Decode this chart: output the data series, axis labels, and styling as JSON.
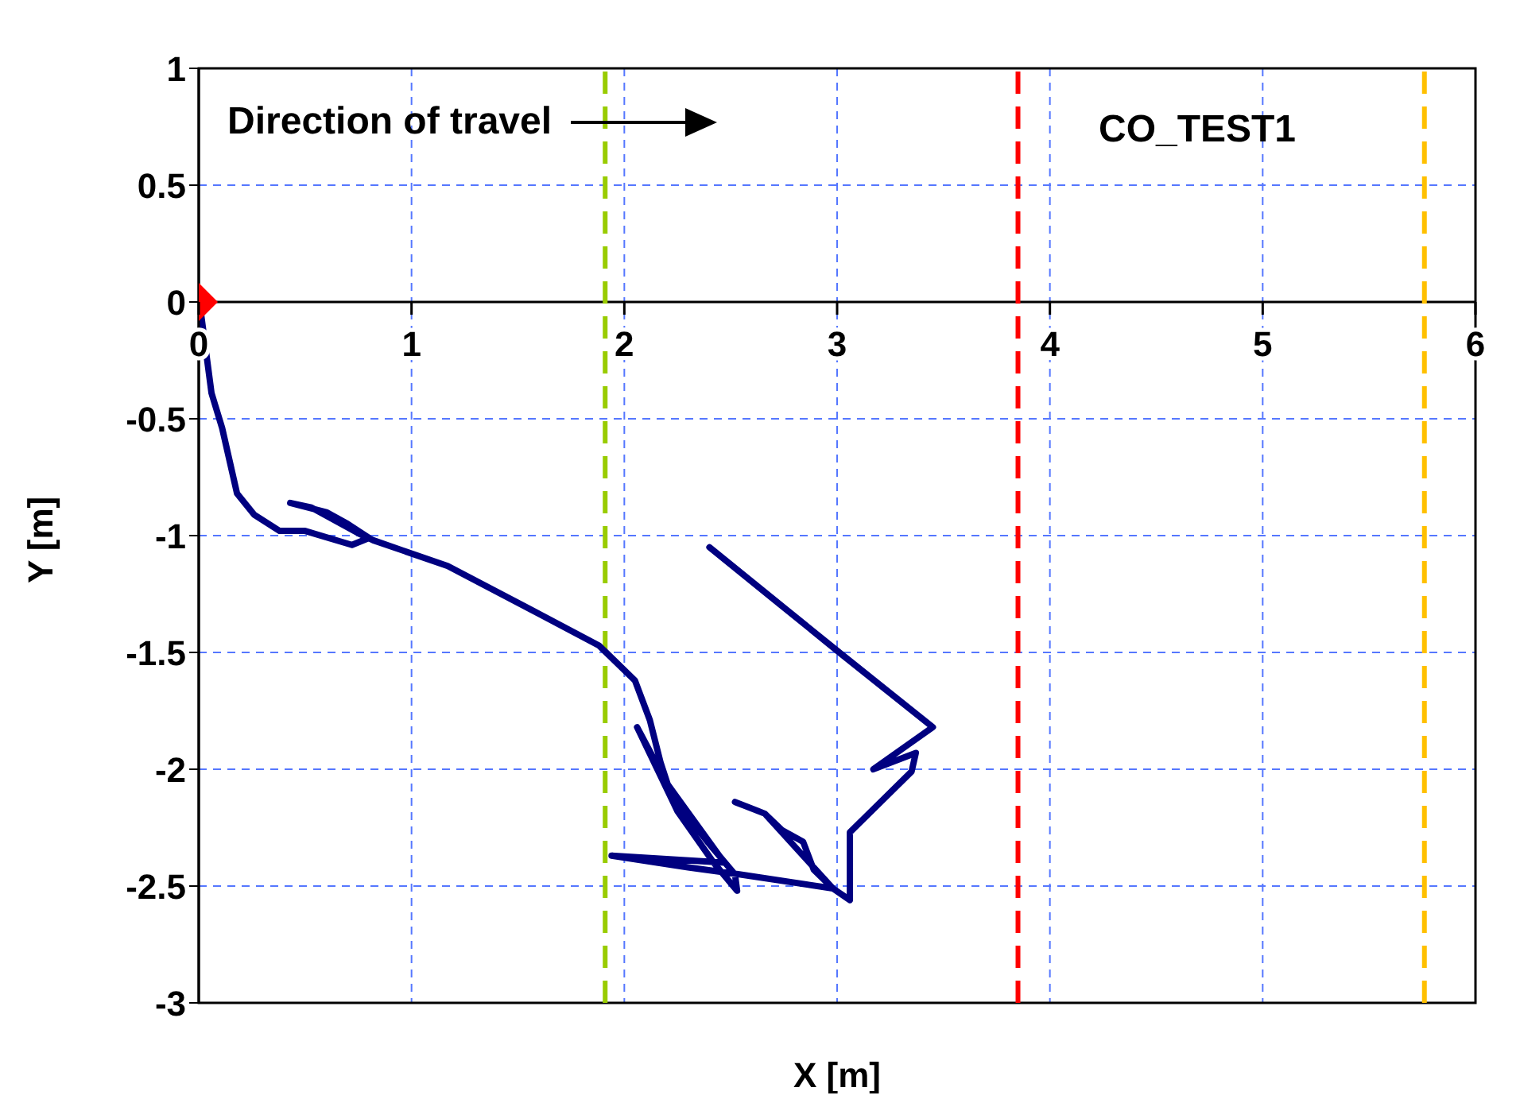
{
  "chart_data": {
    "type": "line",
    "xlabel": "X [m]",
    "ylabel": "Y [m]",
    "annotations": [
      "Direction of travel",
      "CO_TEST1"
    ],
    "xlim": [
      0,
      6
    ],
    "xticks": [
      0,
      1,
      2,
      3,
      4,
      5,
      6
    ],
    "ylim": [
      -3,
      1
    ],
    "yticks": [
      1,
      0.5,
      0,
      -0.5,
      -1,
      -1.5,
      -2,
      -2.5,
      -3
    ],
    "grid": true,
    "line_style": "solid",
    "ref_lines": [
      {
        "axis": "x",
        "value": 1.91,
        "color": "#99cc00",
        "line_style": "dashed"
      },
      {
        "axis": "x",
        "value": 3.85,
        "color": "#ff0000",
        "line_style": "dashed"
      },
      {
        "axis": "x",
        "value": 5.76,
        "color": "#ffc000",
        "line_style": "dashed"
      }
    ],
    "series": [
      {
        "type": "line",
        "color": "#000080",
        "x": [
          0,
          0.005,
          0.06,
          0.11,
          0.18,
          0.26,
          0.38,
          0.5,
          0.72,
          0.8,
          0.7,
          0.6,
          0.43,
          0.53,
          0.75,
          0.82,
          1.17,
          1.61,
          1.88,
          2.05,
          2.12,
          2.17,
          2.22,
          2.39,
          2.52,
          2.53,
          2.42,
          2.25,
          2.06,
          2.2,
          2.47,
          1.94,
          2.3,
          2.54,
          2.98,
          2.89,
          2.84,
          2.74,
          2.66,
          2.52,
          2.66,
          2.98,
          3.06,
          3.06,
          3.35,
          3.37,
          3.17,
          3.45,
          3.01,
          2.4
        ],
        "values": [
          0,
          -0.01,
          -0.39,
          -0.54,
          -0.82,
          -0.91,
          -0.98,
          -0.98,
          -1.04,
          -1.01,
          -0.95,
          -0.9,
          -0.86,
          -0.88,
          -0.99,
          -1.02,
          -1.13,
          -1.34,
          -1.47,
          -1.62,
          -1.79,
          -1.97,
          -2.11,
          -2.31,
          -2.45,
          -2.52,
          -2.4,
          -2.18,
          -1.82,
          -2.06,
          -2.4,
          -2.37,
          -2.42,
          -2.45,
          -2.51,
          -2.43,
          -2.31,
          -2.26,
          -2.19,
          -2.14,
          -2.19,
          -2.51,
          -2.56,
          -2.27,
          -2.01,
          -1.93,
          -2,
          -1.82,
          -1.5,
          -1.05
        ]
      },
      {
        "type": "scatter",
        "color": "#ff0000",
        "marker": "diamond",
        "x": [
          0
        ],
        "values": [
          0
        ]
      }
    ]
  }
}
